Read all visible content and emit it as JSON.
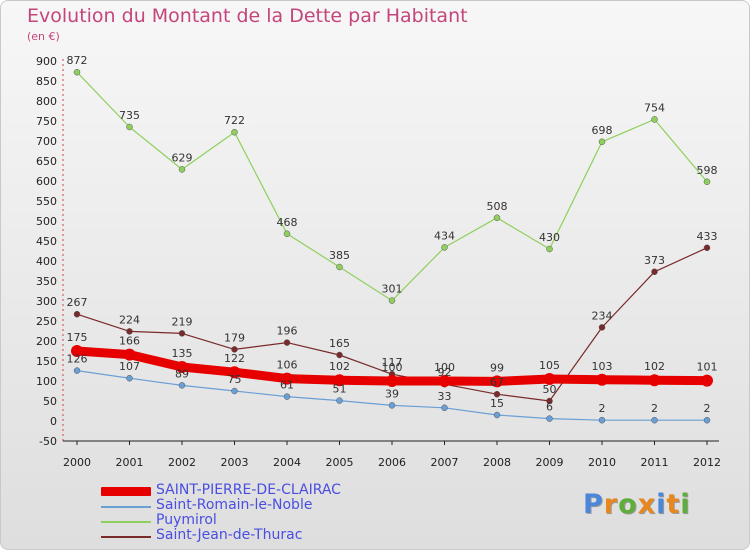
{
  "title": "Evolution du Montant de la Dette par Habitant",
  "unit": "(en €)",
  "chart_data": {
    "type": "line",
    "x": [
      "2000",
      "2001",
      "2002",
      "2003",
      "2004",
      "2005",
      "2006",
      "2007",
      "2008",
      "2009",
      "2010",
      "2011",
      "2012"
    ],
    "ylim": [
      -50,
      900
    ],
    "yticks": [
      -50,
      0,
      50,
      100,
      150,
      200,
      250,
      300,
      350,
      400,
      450,
      500,
      550,
      600,
      650,
      700,
      750,
      800,
      850,
      900
    ],
    "grid": false,
    "legend_position": "bottom-left",
    "series": [
      {
        "name": "SAINT-PIERRE-DE-CLAIRAC",
        "color": "#e60000",
        "values": [
          175,
          166,
          135,
          122,
          106,
          102,
          100,
          100,
          99,
          105,
          103,
          102,
          101
        ]
      },
      {
        "name": "Saint-Romain-le-Noble",
        "color": "#6a9fd4",
        "values": [
          126,
          107,
          89,
          75,
          61,
          51,
          39,
          33,
          15,
          6,
          2,
          2,
          2
        ]
      },
      {
        "name": "Puymirol",
        "color": "#8fd05c",
        "values": [
          872,
          735,
          629,
          722,
          468,
          385,
          301,
          434,
          508,
          430,
          698,
          754,
          598
        ]
      },
      {
        "name": "Saint-Jean-de-Thurac",
        "color": "#7a2a2a",
        "values": [
          267,
          224,
          219,
          179,
          196,
          165,
          117,
          92,
          67,
          50,
          234,
          373,
          433
        ]
      }
    ]
  },
  "logo": {
    "text": "Proxiti",
    "colors": [
      "#4a86d9",
      "#e8871e",
      "#5fae3c",
      "#e8871e",
      "#4a86d9",
      "#e8871e",
      "#5fae3c"
    ]
  }
}
